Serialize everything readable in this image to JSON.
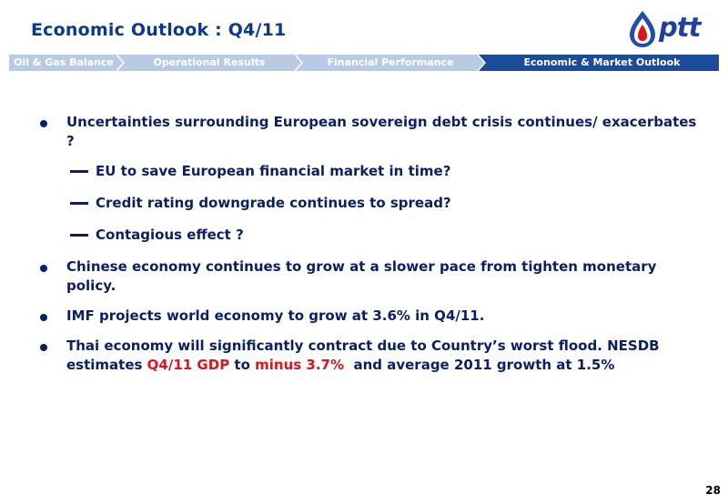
{
  "header": {
    "title": "Economic Outlook : Q4/11"
  },
  "logo": {
    "text": "ptt"
  },
  "nav": {
    "tabs": [
      {
        "label": "Oil & Gas Balance",
        "active": false
      },
      {
        "label": "Operational Results",
        "active": false
      },
      {
        "label": "Financial Performance",
        "active": false
      },
      {
        "label": "Economic & Market Outlook",
        "active": true
      }
    ]
  },
  "content": {
    "bullets": [
      {
        "text": "Uncertainties surrounding European sovereign debt crisis continues/ exacerbates ?"
      },
      {
        "text": "Chinese economy continues to grow at a slower pace from tighten monetary policy."
      },
      {
        "text": "IMF projects world economy to grow at 3.6% in Q4/11."
      },
      {
        "text_a": "Thai economy will significantly contract due to Country’s worst flood. NESDB estimates ",
        "highlight_a": "Q4/11 GDP",
        "text_b": " to ",
        "highlight_b": "minus 3.7%",
        "text_c": "  and average 2011 growth at 1.5%"
      }
    ],
    "subbullets": [
      {
        "text": "EU to save European financial market in time?"
      },
      {
        "text": "Credit rating downgrade continues to spread?"
      },
      {
        "text": "Contagious effect ?"
      }
    ]
  },
  "footer": {
    "page_number": "28"
  },
  "colors": {
    "title": "#0a3a8c",
    "nav_inactive": "#b9cbe4",
    "nav_active": "#1b4c9a",
    "body_text": "#0b1f66",
    "highlight": "#e0141a"
  }
}
